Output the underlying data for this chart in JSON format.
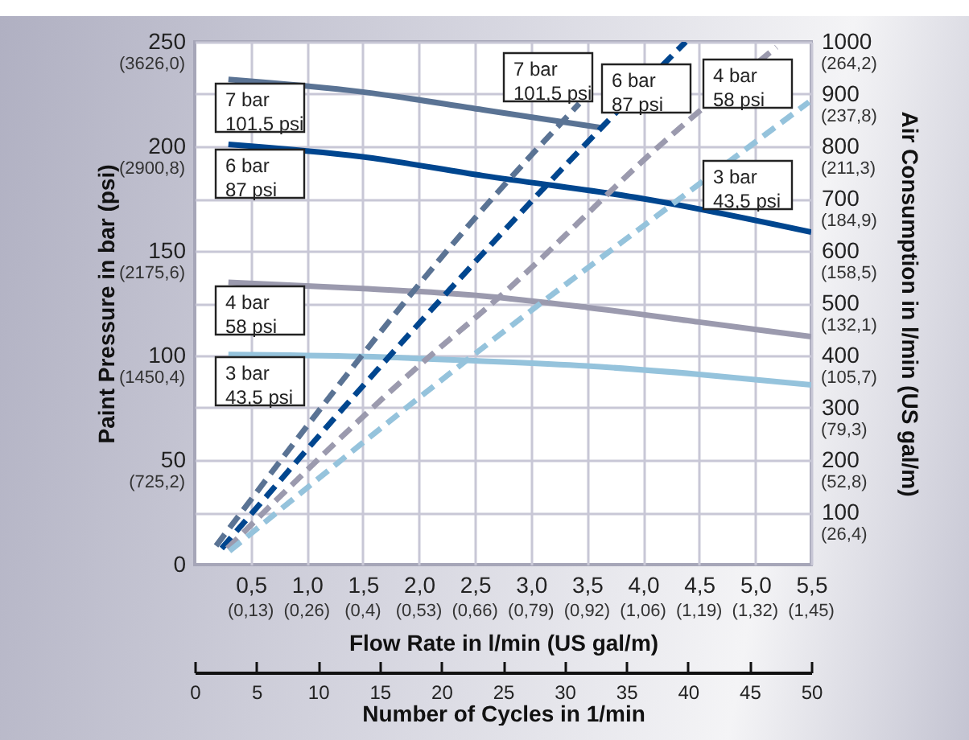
{
  "chart_data": {
    "type": "line",
    "xlabel": "Flow Rate in l/min (US gal/m)",
    "ylabel": "Paint Pressure in bar (psi)",
    "y2label": "Air Consumption in l/min (US gal/m)",
    "x2label": "Number of Cycles in 1/min",
    "xlim": [
      0,
      5.5
    ],
    "ylim": [
      0,
      250
    ],
    "y2lim": [
      0,
      1000
    ],
    "x2lim": [
      0,
      50
    ],
    "xticks": [
      {
        "value": 0.5,
        "label": "0,5"
      },
      {
        "value": 1,
        "label": "1,0"
      },
      {
        "value": 1.5,
        "label": "1,5"
      },
      {
        "value": 2,
        "label": "2,0"
      },
      {
        "value": 2.5,
        "label": "2,5"
      },
      {
        "value": 3,
        "label": "3,0"
      },
      {
        "value": 3.5,
        "label": "3,5"
      },
      {
        "value": 4,
        "label": "4,0"
      },
      {
        "value": 4.5,
        "label": "4,5"
      },
      {
        "value": 5,
        "label": "5,0"
      },
      {
        "value": 5.5,
        "label": "5,5"
      }
    ],
    "yticks": [
      0,
      50,
      100,
      150,
      200,
      250
    ],
    "y2ticks": [
      100,
      200,
      300,
      400,
      500,
      600,
      700,
      800,
      900,
      1000
    ],
    "x2ticks": [
      0,
      5,
      10,
      15,
      20,
      25,
      30,
      35,
      40,
      45,
      50
    ],
    "grid": true,
    "series": [
      {
        "color": "#5a7394",
        "line_style": "solid",
        "x": [
          0.3,
          1.5,
          2.57,
          3.62
        ],
        "values": [
          232,
          226,
          217.5,
          209
        ]
      },
      {
        "color": "#00468f",
        "line_style": "solid",
        "x": [
          0.3,
          1.5,
          2.57,
          4.0,
          5.5
        ],
        "values": [
          201,
          195,
          186,
          175,
          159
        ]
      },
      {
        "color": "#9b9aae",
        "line_style": "solid",
        "x": [
          0.3,
          1.5,
          2.57,
          3.5,
          4.5,
          5.5
        ],
        "values": [
          135,
          132,
          128.5,
          123,
          116,
          109
        ]
      },
      {
        "color": "#95c3dc",
        "line_style": "solid",
        "x": [
          0.3,
          1.5,
          2.5,
          3.5,
          4.5,
          5.5
        ],
        "values": [
          100.5,
          99.5,
          97.5,
          95,
          91,
          86
        ]
      },
      {
        "color": "#5a7394",
        "line_style": "dashed",
        "axis": "y2",
        "x": [
          0.19,
          2.57,
          3.43
        ],
        "values": [
          36,
          680,
          882
        ]
      },
      {
        "color": "#00468f",
        "line_style": "dashed",
        "axis": "y2",
        "x": [
          0.24,
          1.41,
          2.57,
          3.67,
          4.38
        ],
        "values": [
          31,
          320,
          595,
          845,
          1000
        ]
      },
      {
        "color": "#9b9aae",
        "line_style": "dashed",
        "axis": "y2",
        "x": [
          0.29,
          1.95,
          2.76,
          4.14,
          5.19
        ],
        "values": [
          31,
          371,
          520,
          800,
          990
        ]
      },
      {
        "color": "#95c3dc",
        "line_style": "dashed",
        "axis": "y2",
        "x": [
          0.31,
          2.48,
          4.14,
          5.48
        ],
        "values": [
          26,
          400,
          670,
          885
        ]
      }
    ],
    "annotations": [
      "7 bar\n101,5 psi",
      "6 bar\n87 psi",
      "4 bar\n58 psi",
      "3 bar\n43,5 psi",
      "7 bar\n101,5 psi",
      "6 bar\n87 psi",
      "4 bar\n58 psi",
      "3 bar\n43,5 psi",
      "(0,13)",
      "(0,26)",
      "(0,4)",
      "(0,53)",
      "(0,66)",
      "(0,79)",
      "(0,92)",
      "(1,06)",
      "(1,19)",
      "(1,32)",
      "(1,45)",
      "(725,2)",
      "(1450,4)",
      "(2175,6)",
      "(2900,8)",
      "(3626,0)",
      "(26,4)",
      "(52,8)",
      "(79,3)",
      "(105,7)",
      "(132,1)",
      "(158,5)",
      "(184,9)",
      "(211,3)",
      "(237,8)",
      "(264,2)"
    ]
  }
}
